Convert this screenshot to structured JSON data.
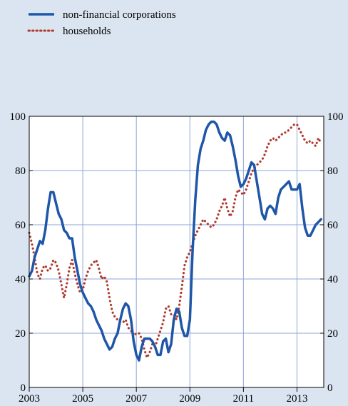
{
  "chart_data": {
    "type": "line",
    "title": "",
    "xlabel": "",
    "ylabel": "",
    "xlim": [
      2003.0,
      2014.0
    ],
    "ylim": [
      0,
      100
    ],
    "x_ticks": [
      2003,
      2005,
      2007,
      2009,
      2011,
      2013
    ],
    "x_tick_labels": [
      "2003",
      "2005",
      "2007",
      "2009",
      "2011",
      "2013"
    ],
    "y_ticks": [
      0,
      20,
      40,
      60,
      80,
      100
    ],
    "y_tick_labels": [
      "0",
      "20",
      "40",
      "60",
      "80",
      "100"
    ],
    "grid": true,
    "legend_position": "top-left",
    "series": [
      {
        "name": "non-financial corporations",
        "color": "#1f56a8",
        "style": "solid",
        "x": [
          2003.0,
          2003.1,
          2003.2,
          2003.3,
          2003.4,
          2003.5,
          2003.6,
          2003.7,
          2003.8,
          2003.9,
          2004.0,
          2004.1,
          2004.2,
          2004.3,
          2004.4,
          2004.5,
          2004.6,
          2004.7,
          2004.8,
          2004.9,
          2005.0,
          2005.1,
          2005.2,
          2005.3,
          2005.4,
          2005.5,
          2005.6,
          2005.7,
          2005.8,
          2005.9,
          2006.0,
          2006.1,
          2006.2,
          2006.3,
          2006.4,
          2006.5,
          2006.6,
          2006.7,
          2006.8,
          2006.9,
          2007.0,
          2007.1,
          2007.2,
          2007.3,
          2007.4,
          2007.5,
          2007.6,
          2007.7,
          2007.8,
          2007.9,
          2008.0,
          2008.1,
          2008.2,
          2008.3,
          2008.4,
          2008.5,
          2008.6,
          2008.7,
          2008.8,
          2008.9,
          2009.0,
          2009.1,
          2009.2,
          2009.3,
          2009.4,
          2009.5,
          2009.6,
          2009.7,
          2009.8,
          2009.9,
          2010.0,
          2010.1,
          2010.2,
          2010.3,
          2010.4,
          2010.5,
          2010.6,
          2010.7,
          2010.8,
          2010.9,
          2011.0,
          2011.1,
          2011.2,
          2011.3,
          2011.4,
          2011.5,
          2011.6,
          2011.7,
          2011.8,
          2011.9,
          2012.0,
          2012.1,
          2012.2,
          2012.3,
          2012.4,
          2012.5,
          2012.6,
          2012.7,
          2012.8,
          2012.9,
          2013.0,
          2013.1,
          2013.2,
          2013.3,
          2013.4,
          2013.5,
          2013.6,
          2013.7,
          2013.8,
          2013.9
        ],
        "values": [
          41,
          43,
          48,
          51,
          54,
          53,
          58,
          66,
          72,
          72,
          68,
          64,
          62,
          58,
          57,
          55,
          55,
          48,
          43,
          38,
          35,
          33,
          31,
          30,
          28,
          25,
          23,
          21,
          18,
          16,
          14,
          15,
          18,
          20,
          25,
          29,
          31,
          30,
          25,
          17,
          12,
          10,
          15,
          18,
          18,
          18,
          17,
          15,
          12,
          12,
          17,
          18,
          13,
          16,
          25,
          29,
          28,
          22,
          19,
          19,
          25,
          50,
          69,
          82,
          88,
          91,
          95,
          97,
          98,
          98,
          97,
          94,
          92,
          91,
          94,
          93,
          89,
          84,
          78,
          74,
          75,
          77,
          80,
          83,
          82,
          76,
          70,
          64,
          62,
          66,
          67,
          66,
          64,
          70,
          73,
          74,
          75,
          76,
          73,
          73,
          73,
          75,
          66,
          59,
          56,
          56,
          58,
          60,
          61,
          62
        ]
      },
      {
        "name": "households",
        "color": "#b03a2e",
        "style": "dotted",
        "x": [
          2003.0,
          2003.1,
          2003.2,
          2003.3,
          2003.4,
          2003.5,
          2003.6,
          2003.7,
          2003.8,
          2003.9,
          2004.0,
          2004.1,
          2004.2,
          2004.3,
          2004.4,
          2004.5,
          2004.6,
          2004.7,
          2004.8,
          2004.9,
          2005.0,
          2005.1,
          2005.2,
          2005.3,
          2005.4,
          2005.5,
          2005.6,
          2005.7,
          2005.8,
          2005.9,
          2006.0,
          2006.1,
          2006.2,
          2006.3,
          2006.4,
          2006.5,
          2006.6,
          2006.7,
          2006.8,
          2006.9,
          2007.0,
          2007.1,
          2007.2,
          2007.3,
          2007.4,
          2007.5,
          2007.6,
          2007.7,
          2007.8,
          2007.9,
          2008.0,
          2008.1,
          2008.2,
          2008.3,
          2008.4,
          2008.5,
          2008.6,
          2008.7,
          2008.8,
          2008.9,
          2009.0,
          2009.1,
          2009.2,
          2009.3,
          2009.4,
          2009.5,
          2009.6,
          2009.7,
          2009.8,
          2009.9,
          2010.0,
          2010.1,
          2010.2,
          2010.3,
          2010.4,
          2010.5,
          2010.6,
          2010.7,
          2010.8,
          2010.9,
          2011.0,
          2011.1,
          2011.2,
          2011.3,
          2011.4,
          2011.5,
          2011.6,
          2011.7,
          2011.8,
          2011.9,
          2012.0,
          2012.1,
          2012.2,
          2012.3,
          2012.4,
          2012.5,
          2012.6,
          2012.7,
          2012.8,
          2012.9,
          2013.0,
          2013.1,
          2013.2,
          2013.3,
          2013.4,
          2013.5,
          2013.6,
          2013.7,
          2013.8,
          2013.9
        ],
        "values": [
          57,
          53,
          48,
          42,
          40,
          44,
          45,
          43,
          44,
          47,
          46,
          43,
          38,
          33,
          38,
          44,
          47,
          42,
          38,
          35,
          36,
          40,
          43,
          45,
          46,
          47,
          44,
          40,
          41,
          39,
          33,
          28,
          26,
          25,
          24,
          24,
          25,
          22,
          21,
          19,
          20,
          20,
          18,
          14,
          11,
          13,
          16,
          15,
          18,
          21,
          24,
          29,
          30,
          27,
          27,
          25,
          30,
          37,
          45,
          48,
          50,
          53,
          56,
          58,
          60,
          62,
          61,
          60,
          59,
          60,
          62,
          65,
          67,
          70,
          66,
          63,
          65,
          70,
          73,
          72,
          71,
          73,
          76,
          79,
          81,
          82,
          83,
          84,
          86,
          89,
          91,
          92,
          91,
          92,
          93,
          94,
          94,
          95,
          96,
          97,
          97,
          95,
          93,
          91,
          90,
          91,
          90,
          89,
          92,
          90
        ]
      }
    ]
  }
}
